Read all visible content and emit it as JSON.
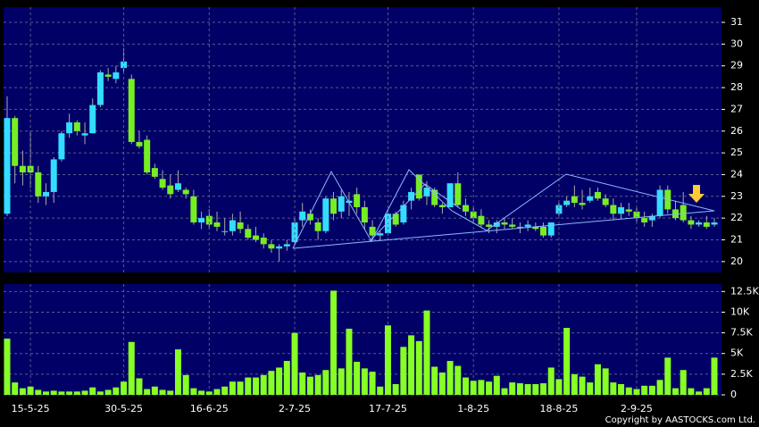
{
  "chart_data": [
    {
      "type": "candlestick",
      "up_color": "#33ddff",
      "down_color": "#77ee22",
      "ylim": [
        19.5,
        31.7
      ],
      "yticks": [
        20,
        21,
        22,
        23,
        24,
        25,
        26,
        27,
        28,
        29,
        30,
        31
      ],
      "grid": true,
      "open": [
        22.2,
        26.6,
        24.4,
        24.4,
        24.1,
        23.0,
        23.2,
        24.7,
        25.9,
        26.4,
        25.8,
        25.9,
        27.2,
        28.6,
        28.4,
        28.9,
        28.4,
        25.5,
        25.6,
        24.3,
        23.8,
        23.5,
        23.3,
        23.3,
        23.0,
        21.8,
        22.1,
        21.8,
        21.4,
        21.4,
        21.8,
        21.5,
        21.2,
        21.1,
        20.8,
        20.6,
        20.7,
        20.9,
        21.9,
        22.2,
        21.8,
        21.4,
        22.9,
        22.3,
        22.7,
        23.1,
        22.5,
        21.6,
        21.2,
        21.3,
        22.2,
        21.8,
        22.8,
        24.0,
        23.0,
        23.3,
        22.6,
        22.5,
        23.6,
        22.6,
        22.3,
        22.1,
        21.7,
        21.6,
        21.8,
        21.7,
        21.6,
        21.6,
        21.6,
        21.6,
        21.2,
        22.2,
        22.6,
        23.0,
        22.7,
        22.8,
        23.2,
        22.9,
        22.6,
        22.2,
        22.4,
        22.3,
        22.0,
        21.9,
        22.1,
        23.3,
        22.4,
        22.6,
        21.9,
        21.7,
        21.8,
        21.7
      ],
      "high": [
        27.6,
        26.7,
        25.1,
        26.0,
        24.4,
        23.6,
        24.8,
        26.0,
        26.8,
        26.5,
        26.4,
        27.5,
        28.8,
        28.9,
        29.0,
        29.8,
        28.6,
        26.0,
        25.8,
        24.5,
        24.2,
        24.0,
        24.2,
        23.4,
        23.3,
        22.3,
        22.4,
        22.3,
        22.0,
        22.2,
        22.3,
        21.7,
        21.6,
        21.3,
        21.0,
        20.8,
        21.0,
        22.0,
        22.7,
        22.4,
        22.0,
        23.0,
        23.2,
        23.3,
        23.2,
        23.4,
        22.8,
        21.9,
        21.4,
        22.4,
        22.3,
        22.8,
        23.4,
        24.0,
        23.7,
        23.4,
        22.7,
        23.6,
        24.1,
        22.9,
        22.5,
        22.4,
        21.9,
        21.9,
        22.0,
        22.0,
        21.8,
        21.9,
        21.8,
        21.8,
        21.8,
        22.7,
        23.0,
        23.5,
        23.3,
        23.4,
        23.4,
        23.1,
        22.9,
        22.7,
        22.7,
        22.5,
        22.3,
        22.2,
        23.5,
        23.5,
        22.8,
        23.2,
        22.1,
        21.9,
        22.1,
        22.0
      ],
      "low": [
        22.1,
        23.6,
        23.5,
        23.4,
        22.7,
        22.6,
        22.7,
        24.6,
        25.7,
        25.8,
        25.4,
        25.9,
        27.1,
        28.3,
        28.2,
        28.7,
        25.4,
        25.2,
        24.0,
        23.8,
        23.3,
        22.9,
        23.2,
        22.9,
        21.7,
        21.5,
        21.5,
        21.4,
        21.2,
        21.2,
        21.3,
        21.0,
        20.9,
        20.6,
        20.4,
        20.0,
        20.5,
        20.8,
        21.6,
        21.7,
        21.0,
        21.3,
        21.9,
        22.0,
        22.1,
        22.2,
        21.5,
        21.0,
        21.0,
        21.2,
        21.6,
        21.7,
        22.4,
        22.8,
        22.6,
        22.5,
        22.2,
        22.5,
        22.5,
        22.1,
        21.8,
        21.6,
        21.3,
        21.3,
        21.5,
        21.5,
        21.3,
        21.4,
        21.4,
        21.1,
        21.1,
        22.1,
        22.5,
        22.5,
        22.4,
        22.7,
        22.8,
        22.5,
        21.9,
        22.0,
        22.1,
        21.8,
        21.6,
        21.6,
        22.0,
        22.2,
        21.9,
        21.8,
        21.5,
        21.6,
        21.5,
        21.6
      ],
      "close": [
        26.6,
        24.4,
        24.1,
        24.1,
        23.0,
        23.2,
        24.7,
        25.9,
        26.4,
        26.0,
        25.9,
        27.2,
        28.7,
        28.5,
        28.7,
        29.2,
        25.5,
        25.3,
        24.1,
        23.9,
        23.4,
        23.1,
        23.6,
        23.1,
        21.8,
        22.0,
        21.7,
        21.6,
        21.4,
        21.9,
        21.5,
        21.1,
        21.0,
        20.8,
        20.6,
        20.7,
        20.8,
        21.8,
        22.3,
        21.9,
        21.4,
        22.9,
        22.2,
        23.0,
        22.8,
        22.5,
        21.8,
        21.2,
        21.3,
        22.2,
        21.7,
        22.6,
        23.2,
        22.9,
        23.4,
        22.6,
        22.5,
        23.6,
        22.6,
        22.3,
        22.0,
        21.7,
        21.6,
        21.8,
        21.7,
        21.6,
        21.6,
        21.7,
        21.5,
        21.2,
        21.8,
        22.6,
        22.8,
        22.7,
        22.6,
        23.0,
        22.9,
        22.6,
        22.2,
        22.5,
        22.3,
        22.0,
        21.8,
        22.1,
        23.3,
        22.4,
        22.0,
        21.9,
        21.7,
        21.8,
        21.6,
        21.8
      ]
    },
    {
      "type": "bar",
      "color": "#88ff22",
      "ylim": [
        0,
        13400
      ],
      "yticks": [
        0,
        {
          "value": 2500,
          "label": "2.5K"
        },
        {
          "value": 5000,
          "label": "5K"
        },
        {
          "value": 7500,
          "label": "7.5K"
        },
        {
          "value": 10000,
          "label": "10K"
        },
        {
          "value": 12500,
          "label": "12.5K"
        }
      ],
      "categories": [
        null,
        null,
        null,
        "15-5-25",
        null,
        null,
        null,
        null,
        null,
        null,
        null,
        null,
        null,
        null,
        null,
        "30-5-25",
        null,
        null,
        null,
        null,
        null,
        null,
        null,
        null,
        null,
        null,
        "16-6-25",
        null,
        null,
        null,
        null,
        null,
        null,
        null,
        null,
        null,
        null,
        "2-7-25",
        null,
        null,
        null,
        null,
        null,
        null,
        null,
        null,
        null,
        null,
        null,
        "17-7-25",
        null,
        null,
        null,
        null,
        null,
        null,
        null,
        null,
        null,
        null,
        "1-8-25",
        null,
        null,
        null,
        null,
        null,
        null,
        null,
        null,
        null,
        null,
        "18-8-25",
        null,
        null,
        null,
        null,
        null,
        null,
        null,
        null,
        null,
        "2-9-25",
        null,
        null,
        null,
        null,
        null,
        null,
        null,
        null,
        null,
        null
      ],
      "values": [
        6800,
        1500,
        800,
        1000,
        600,
        400,
        500,
        400,
        400,
        400,
        500,
        900,
        400,
        600,
        900,
        1600,
        6400,
        2000,
        700,
        1000,
        600,
        500,
        5500,
        2400,
        800,
        500,
        400,
        700,
        1000,
        1600,
        1600,
        2100,
        2100,
        2400,
        2900,
        3300,
        4100,
        7500,
        2700,
        2200,
        2400,
        3000,
        12600,
        3200,
        8000,
        4000,
        3200,
        2800,
        1000,
        8400,
        1300,
        5800,
        7200,
        6500,
        10200,
        3400,
        2700,
        4100,
        3500,
        2100,
        1700,
        1800,
        1600,
        2300,
        800,
        1500,
        1400,
        1300,
        1300,
        1400,
        3300,
        1900,
        8100,
        2500,
        2200,
        1500,
        3700,
        3200,
        1500,
        1300,
        900,
        700,
        1100,
        1100,
        1800,
        4500,
        800,
        3000,
        800,
        400,
        800,
        4500
      ]
    }
  ],
  "copyright": "Copyright by AASTOCKS.com Ltd."
}
